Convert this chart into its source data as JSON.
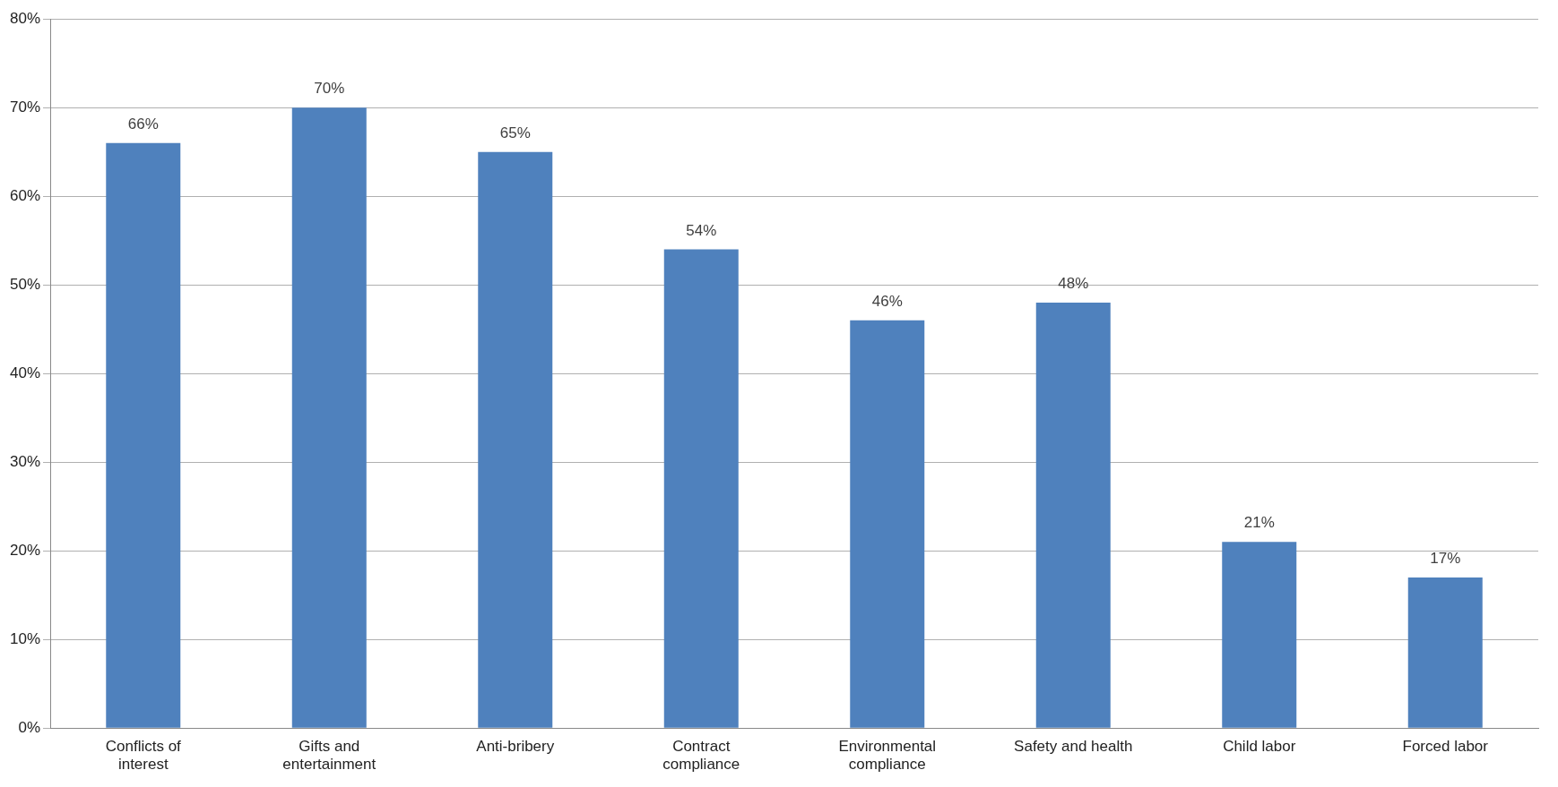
{
  "chart_data": {
    "type": "bar",
    "categories": [
      "Conflicts of interest",
      "Gifts and entertainment",
      "Anti-bribery",
      "Contract compliance",
      "Environmental compliance",
      "Safety and health",
      "Child labor",
      "Forced labor"
    ],
    "values": [
      66,
      70,
      65,
      54,
      46,
      48,
      21,
      17
    ],
    "value_labels": [
      "66%",
      "70%",
      "65%",
      "54%",
      "46%",
      "48%",
      "21%",
      "17%"
    ],
    "color": "#4f81bd",
    "ylim": [
      0,
      80
    ],
    "yticks": [
      {
        "value": 0,
        "label": "0%"
      },
      {
        "value": 10,
        "label": "10%"
      },
      {
        "value": 20,
        "label": "20%"
      },
      {
        "value": 30,
        "label": "30%"
      },
      {
        "value": 40,
        "label": "40%"
      },
      {
        "value": 50,
        "label": "50%"
      },
      {
        "value": 60,
        "label": "60%"
      },
      {
        "value": 70,
        "label": "70%"
      },
      {
        "value": 80,
        "label": "80%"
      }
    ],
    "grid": "y",
    "legend": false
  }
}
